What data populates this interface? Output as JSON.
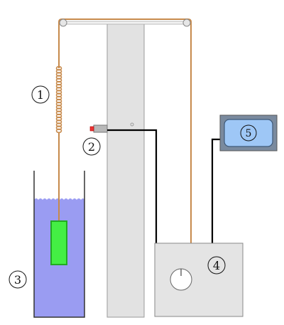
{
  "colors": {
    "wire": "#c78a4c",
    "cable": "#000000",
    "liquid": "#9a9cf2",
    "block_fill": "#44ee44",
    "block_stroke": "#22aa22",
    "column": "#e2e2e2",
    "box": "#e4e4e4",
    "display_frame": "#7a8a9e",
    "display_screen": "#9ec7f6"
  },
  "icons": [
    "pulley-icon",
    "spring-icon",
    "sensor-icon",
    "knob-icon"
  ],
  "labels": {
    "spring": "1",
    "sensor": "2",
    "container": "3",
    "control_box": "4",
    "display": "5"
  }
}
